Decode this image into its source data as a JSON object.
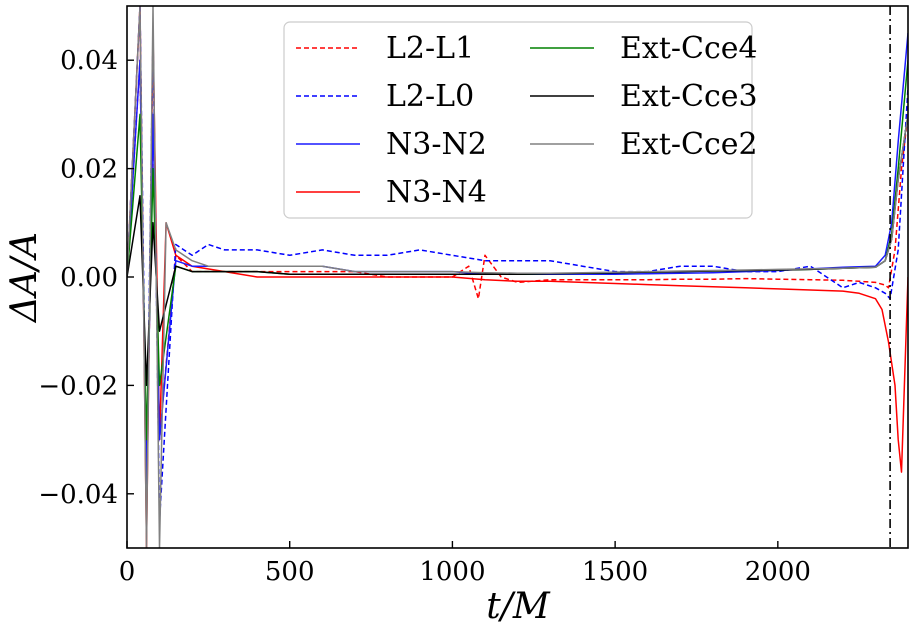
{
  "chart_data": {
    "type": "line",
    "xlabel": "t/M",
    "ylabel": "ΔA/A",
    "xlim": [
      0,
      2400
    ],
    "ylim": [
      -0.05,
      0.05
    ],
    "xticks": [
      0,
      500,
      1000,
      1500,
      2000
    ],
    "yticks": [
      -0.04,
      -0.02,
      0.0,
      0.02,
      0.04
    ],
    "xtick_labels": [
      "0",
      "500",
      "1000",
      "1500",
      "2000"
    ],
    "ytick_labels": [
      "−0.04",
      "−0.02",
      "0.00",
      "0.02",
      "0.04"
    ],
    "vline_x": 2345,
    "legend": {
      "placement": "upper center",
      "columns": 2
    },
    "series": [
      {
        "name": "L2-L1",
        "color": "#ff0000",
        "dashed": true,
        "x": [
          0,
          40,
          60,
          80,
          100,
          150,
          200,
          300,
          400,
          500,
          600,
          700,
          800,
          900,
          1000,
          1050,
          1080,
          1100,
          1150,
          1200,
          1300,
          1400,
          1500,
          1600,
          1700,
          1800,
          1900,
          2000,
          2100,
          2200,
          2250,
          2300,
          2330,
          2340,
          2360,
          2380,
          2400
        ],
        "y": [
          0,
          0.04,
          -0.04,
          0.03,
          -0.03,
          0.004,
          0.001,
          0.001,
          0.001,
          0.001,
          0.001,
          0.001,
          0.0,
          0.0,
          0.0,
          0.002,
          -0.004,
          0.004,
          0.0,
          -0.001,
          -0.0005,
          -0.0005,
          -0.0005,
          -0.0005,
          -0.0004,
          -0.0004,
          -0.0003,
          -0.0004,
          -0.0005,
          -0.0006,
          -0.0008,
          -0.001,
          -0.0015,
          -0.002,
          0.005,
          0.02,
          0.03
        ]
      },
      {
        "name": "L2-L0",
        "color": "#0000ff",
        "dashed": true,
        "x": [
          0,
          40,
          60,
          80,
          100,
          150,
          200,
          250,
          300,
          400,
          500,
          600,
          700,
          800,
          900,
          1000,
          1100,
          1200,
          1300,
          1400,
          1500,
          1600,
          1700,
          1800,
          1900,
          2000,
          2100,
          2200,
          2250,
          2300,
          2330,
          2345,
          2370,
          2400
        ],
        "y": [
          0,
          0.05,
          -0.04,
          0.045,
          -0.045,
          0.006,
          0.004,
          0.006,
          0.005,
          0.005,
          0.004,
          0.005,
          0.004,
          0.004,
          0.005,
          0.004,
          0.003,
          0.003,
          0.003,
          0.002,
          0.001,
          0.001,
          0.002,
          0.002,
          0.001,
          0.001,
          0.002,
          -0.002,
          -0.001,
          -0.002,
          -0.003,
          -0.004,
          0.005,
          0.035
        ]
      },
      {
        "name": "N3-N2",
        "color": "#1a1aff",
        "dashed": false,
        "x": [
          0,
          40,
          60,
          80,
          100,
          150,
          200,
          300,
          400,
          500,
          600,
          700,
          800,
          900,
          1000,
          1100,
          1200,
          1300,
          1400,
          1500,
          1600,
          1700,
          1800,
          1900,
          2000,
          2100,
          2200,
          2300,
          2330,
          2350,
          2370,
          2400
        ],
        "y": [
          0,
          0.04,
          -0.04,
          0.03,
          -0.03,
          0.003,
          0.002,
          0.002,
          0.002,
          0.002,
          0.002,
          0.001,
          0.001,
          0.001,
          0.001,
          0.0005,
          0.0005,
          0.0005,
          0.0005,
          0.0005,
          0.0006,
          0.0007,
          0.0008,
          0.001,
          0.0012,
          0.0015,
          0.0018,
          0.002,
          0.004,
          0.01,
          0.025,
          0.045
        ]
      },
      {
        "name": "N3-N4",
        "color": "#ff0000",
        "dashed": false,
        "x": [
          0,
          40,
          60,
          80,
          100,
          120,
          150,
          200,
          300,
          400,
          500,
          600,
          700,
          800,
          900,
          1000,
          1100,
          1200,
          1300,
          1400,
          1500,
          1600,
          1700,
          1800,
          1900,
          2000,
          2100,
          2200,
          2250,
          2300,
          2320,
          2340,
          2360,
          2370,
          2380,
          2400
        ],
        "y": [
          0,
          0.05,
          -0.05,
          0.045,
          -0.03,
          0.01,
          0.004,
          0.002,
          0.001,
          0.0,
          0.0,
          0.0,
          0.0,
          0.0,
          0.0,
          0.0,
          -0.0005,
          -0.0008,
          -0.0008,
          -0.001,
          -0.0012,
          -0.0014,
          -0.0016,
          -0.0018,
          -0.002,
          -0.0022,
          -0.0024,
          -0.0026,
          -0.003,
          -0.004,
          -0.006,
          -0.012,
          -0.02,
          -0.03,
          -0.036,
          0.0
        ]
      },
      {
        "name": "Ext-Cce4",
        "color": "#008000",
        "dashed": false,
        "x": [
          0,
          40,
          60,
          80,
          100,
          150,
          200,
          300,
          400,
          500,
          600,
          700,
          800,
          900,
          1000,
          1100,
          1200,
          1300,
          1400,
          1500,
          1600,
          1700,
          1800,
          1900,
          2000,
          2100,
          2200,
          2300,
          2330,
          2350,
          2370,
          2400
        ],
        "y": [
          0,
          0.03,
          -0.03,
          0.02,
          -0.02,
          0.002,
          0.001,
          0.001,
          0.001,
          0.0005,
          0.0005,
          0.0005,
          0.0005,
          0.0005,
          0.0005,
          0.0005,
          0.0005,
          0.0006,
          0.0007,
          0.0008,
          0.0009,
          0.001,
          0.0011,
          0.0012,
          0.0013,
          0.0014,
          0.0016,
          0.0018,
          0.003,
          0.008,
          0.02,
          0.04
        ]
      },
      {
        "name": "Ext-Cce3",
        "color": "#000000",
        "dashed": false,
        "x": [
          0,
          40,
          60,
          80,
          100,
          150,
          200,
          300,
          400,
          500,
          600,
          700,
          800,
          900,
          1000,
          1100,
          1200,
          1300,
          1400,
          1500,
          1600,
          1700,
          1800,
          1900,
          2000,
          2100,
          2200,
          2300,
          2330,
          2350,
          2370,
          2400
        ],
        "y": [
          0,
          0.015,
          -0.02,
          0.01,
          -0.01,
          0.002,
          0.001,
          0.001,
          0.001,
          0.0005,
          0.0005,
          0.0005,
          0.0005,
          0.0005,
          0.0005,
          0.0005,
          0.0005,
          0.0006,
          0.0007,
          0.0008,
          0.0009,
          0.001,
          0.0011,
          0.0012,
          0.0013,
          0.0014,
          0.0016,
          0.0018,
          0.003,
          0.007,
          0.018,
          0.03
        ]
      },
      {
        "name": "Ext-Cce2",
        "color": "#808080",
        "dashed": false,
        "x": [
          0,
          40,
          60,
          80,
          100,
          120,
          150,
          200,
          250,
          300,
          350,
          400,
          500,
          600,
          700,
          800,
          900,
          1000,
          1100,
          1200,
          1300,
          1400,
          1500,
          1600,
          1700,
          1800,
          1900,
          2000,
          2100,
          2200,
          2300,
          2330,
          2350,
          2370,
          2400
        ],
        "y": [
          0,
          0.05,
          -0.05,
          0.05,
          -0.05,
          0.01,
          0.005,
          0.003,
          0.002,
          0.002,
          0.002,
          0.002,
          0.002,
          0.002,
          0.001,
          0.001,
          0.001,
          0.001,
          0.0008,
          0.0007,
          0.0007,
          0.0008,
          0.0009,
          0.001,
          0.0011,
          0.0012,
          0.0013,
          0.0014,
          0.0015,
          0.0016,
          0.0018,
          0.003,
          0.007,
          0.018,
          0.03
        ]
      }
    ]
  }
}
